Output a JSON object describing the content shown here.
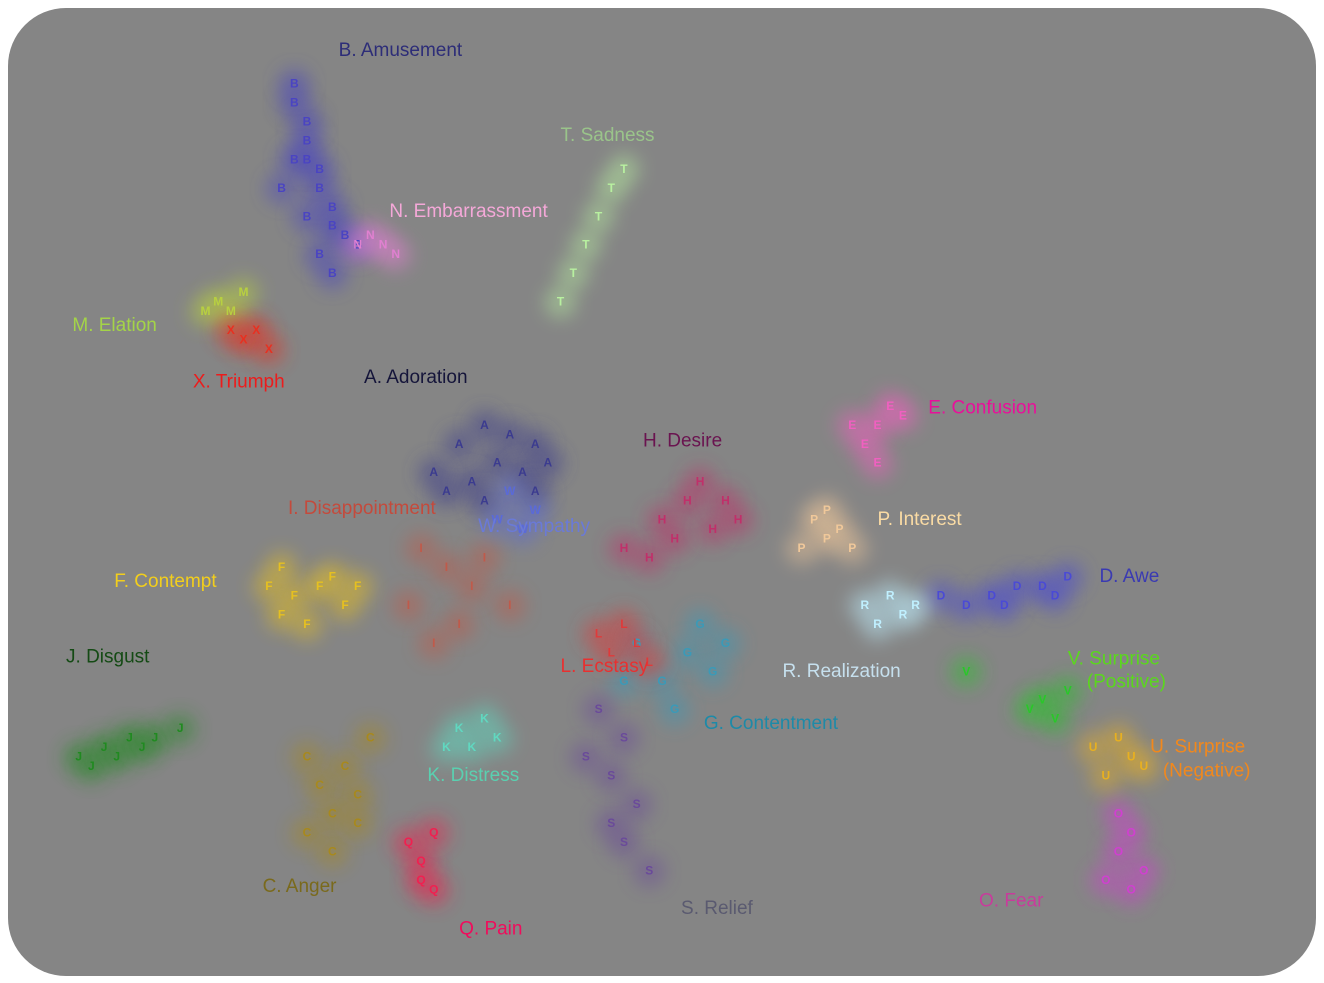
{
  "chart_data": {
    "type": "scatter",
    "title": "",
    "xlabel": "",
    "ylabel": "",
    "grid": false,
    "legend": "none",
    "xlim": [
      0,
      1
    ],
    "ylim": [
      0,
      1
    ],
    "series": [
      {
        "key": "A",
        "label": "A. Adoration",
        "color": "#15153a",
        "point_color": "#3b3b8f",
        "points": [
          [
            0.36,
            0.57
          ],
          [
            0.38,
            0.56
          ],
          [
            0.4,
            0.55
          ],
          [
            0.34,
            0.55
          ],
          [
            0.37,
            0.53
          ],
          [
            0.39,
            0.52
          ],
          [
            0.33,
            0.5
          ],
          [
            0.35,
            0.51
          ],
          [
            0.41,
            0.53
          ],
          [
            0.36,
            0.49
          ],
          [
            0.32,
            0.52
          ],
          [
            0.4,
            0.5
          ]
        ]
      },
      {
        "key": "B",
        "label": "B. Amusement",
        "color": "#2d2d78",
        "point_color": "#4a44c2",
        "points": [
          [
            0.21,
            0.93
          ],
          [
            0.21,
            0.91
          ],
          [
            0.22,
            0.89
          ],
          [
            0.22,
            0.87
          ],
          [
            0.22,
            0.85
          ],
          [
            0.23,
            0.84
          ],
          [
            0.23,
            0.82
          ],
          [
            0.24,
            0.8
          ],
          [
            0.24,
            0.78
          ],
          [
            0.25,
            0.77
          ],
          [
            0.26,
            0.76
          ],
          [
            0.22,
            0.79
          ],
          [
            0.23,
            0.75
          ],
          [
            0.24,
            0.73
          ],
          [
            0.2,
            0.82
          ],
          [
            0.21,
            0.85
          ]
        ]
      },
      {
        "key": "C",
        "label": "C. Anger",
        "color": "#7a6a1c",
        "point_color": "#a8891c",
        "points": [
          [
            0.22,
            0.14
          ],
          [
            0.24,
            0.16
          ],
          [
            0.23,
            0.19
          ],
          [
            0.25,
            0.21
          ],
          [
            0.26,
            0.18
          ],
          [
            0.22,
            0.22
          ],
          [
            0.27,
            0.24
          ],
          [
            0.24,
            0.12
          ],
          [
            0.26,
            0.15
          ]
        ]
      },
      {
        "key": "D",
        "label": "D. Awe",
        "color": "#3a3ab2",
        "point_color": "#4a4ad6",
        "points": [
          [
            0.8,
            0.4
          ],
          [
            0.82,
            0.41
          ],
          [
            0.78,
            0.4
          ],
          [
            0.76,
            0.39
          ],
          [
            0.74,
            0.38
          ],
          [
            0.81,
            0.39
          ],
          [
            0.77,
            0.38
          ],
          [
            0.72,
            0.39
          ]
        ]
      },
      {
        "key": "E",
        "label": "E. Confusion",
        "color": "#e8109a",
        "point_color": "#f060c0",
        "points": [
          [
            0.68,
            0.59
          ],
          [
            0.67,
            0.57
          ],
          [
            0.66,
            0.55
          ],
          [
            0.67,
            0.53
          ],
          [
            0.69,
            0.58
          ],
          [
            0.65,
            0.57
          ]
        ]
      },
      {
        "key": "F",
        "label": "F. Contempt",
        "color": "#f2ce1c",
        "point_color": "#e6c020",
        "points": [
          [
            0.19,
            0.4
          ],
          [
            0.21,
            0.39
          ],
          [
            0.2,
            0.37
          ],
          [
            0.23,
            0.4
          ],
          [
            0.25,
            0.38
          ],
          [
            0.22,
            0.36
          ],
          [
            0.24,
            0.41
          ],
          [
            0.26,
            0.4
          ],
          [
            0.2,
            0.42
          ]
        ]
      },
      {
        "key": "G",
        "label": "G. Contentment",
        "color": "#1d8aa8",
        "point_color": "#3a9ab8",
        "points": [
          [
            0.52,
            0.33
          ],
          [
            0.54,
            0.31
          ],
          [
            0.5,
            0.3
          ],
          [
            0.48,
            0.34
          ],
          [
            0.51,
            0.27
          ],
          [
            0.47,
            0.3
          ],
          [
            0.55,
            0.34
          ],
          [
            0.53,
            0.36
          ]
        ]
      },
      {
        "key": "H",
        "label": "H. Desire",
        "color": "#6a1450",
        "point_color": "#c0306a",
        "points": [
          [
            0.53,
            0.51
          ],
          [
            0.52,
            0.49
          ],
          [
            0.5,
            0.47
          ],
          [
            0.51,
            0.45
          ],
          [
            0.49,
            0.43
          ],
          [
            0.54,
            0.46
          ],
          [
            0.47,
            0.44
          ],
          [
            0.55,
            0.49
          ],
          [
            0.56,
            0.47
          ]
        ]
      },
      {
        "key": "I",
        "label": "I. Disappointment",
        "color": "#c44a3c",
        "point_color": "#c05a4a",
        "points": [
          [
            0.31,
            0.44
          ],
          [
            0.33,
            0.42
          ],
          [
            0.35,
            0.4
          ],
          [
            0.3,
            0.38
          ],
          [
            0.34,
            0.36
          ],
          [
            0.36,
            0.43
          ],
          [
            0.32,
            0.34
          ],
          [
            0.38,
            0.38
          ]
        ]
      },
      {
        "key": "J",
        "label": "J. Disgust",
        "color": "#144a14",
        "point_color": "#208a20",
        "points": [
          [
            0.04,
            0.22
          ],
          [
            0.06,
            0.23
          ],
          [
            0.08,
            0.24
          ],
          [
            0.1,
            0.24
          ],
          [
            0.12,
            0.25
          ],
          [
            0.05,
            0.21
          ],
          [
            0.07,
            0.22
          ],
          [
            0.09,
            0.23
          ]
        ]
      },
      {
        "key": "K",
        "label": "K. Distress",
        "color": "#5ad0b0",
        "point_color": "#60d8c0",
        "points": [
          [
            0.34,
            0.25
          ],
          [
            0.35,
            0.23
          ],
          [
            0.37,
            0.24
          ],
          [
            0.33,
            0.23
          ],
          [
            0.36,
            0.26
          ]
        ]
      },
      {
        "key": "L",
        "label": "L. Ecstasy",
        "color": "#e83030",
        "point_color": "#e03a3a",
        "points": [
          [
            0.47,
            0.36
          ],
          [
            0.48,
            0.34
          ],
          [
            0.46,
            0.33
          ],
          [
            0.49,
            0.32
          ],
          [
            0.45,
            0.35
          ]
        ]
      },
      {
        "key": "M",
        "label": "M. Elation",
        "color": "#a4d448",
        "point_color": "#b8d040",
        "points": [
          [
            0.15,
            0.7
          ],
          [
            0.16,
            0.69
          ],
          [
            0.14,
            0.69
          ],
          [
            0.17,
            0.71
          ]
        ]
      },
      {
        "key": "N",
        "label": "N. Embarrassment",
        "color": "#f4a8d8",
        "point_color": "#e080d0",
        "points": [
          [
            0.27,
            0.77
          ],
          [
            0.28,
            0.76
          ],
          [
            0.29,
            0.75
          ],
          [
            0.26,
            0.76
          ]
        ]
      },
      {
        "key": "O",
        "label": "O. Fear",
        "color": "#c83c9c",
        "point_color": "#d040d0",
        "points": [
          [
            0.87,
            0.08
          ],
          [
            0.88,
            0.1
          ],
          [
            0.86,
            0.12
          ],
          [
            0.87,
            0.14
          ],
          [
            0.85,
            0.09
          ],
          [
            0.86,
            0.16
          ]
        ]
      },
      {
        "key": "P",
        "label": "P. Interest",
        "color": "#fadba4",
        "point_color": "#f0c89a",
        "points": [
          [
            0.62,
            0.47
          ],
          [
            0.63,
            0.45
          ],
          [
            0.64,
            0.46
          ],
          [
            0.61,
            0.44
          ],
          [
            0.65,
            0.44
          ],
          [
            0.63,
            0.48
          ]
        ]
      },
      {
        "key": "Q",
        "label": "Q. Pain",
        "color": "#f00c5c",
        "point_color": "#f02050",
        "points": [
          [
            0.32,
            0.08
          ],
          [
            0.31,
            0.11
          ],
          [
            0.3,
            0.13
          ],
          [
            0.32,
            0.14
          ],
          [
            0.31,
            0.09
          ]
        ]
      },
      {
        "key": "R",
        "label": "R. Realization",
        "color": "#c6e0ee",
        "point_color": "#c0f0ff",
        "points": [
          [
            0.68,
            0.39
          ],
          [
            0.69,
            0.37
          ],
          [
            0.67,
            0.36
          ],
          [
            0.7,
            0.38
          ],
          [
            0.66,
            0.38
          ]
        ]
      },
      {
        "key": "S",
        "label": "S. Relief",
        "color": "#5a5a70",
        "point_color": "#6a4a9a",
        "points": [
          [
            0.45,
            0.27
          ],
          [
            0.47,
            0.24
          ],
          [
            0.46,
            0.2
          ],
          [
            0.48,
            0.17
          ],
          [
            0.47,
            0.13
          ],
          [
            0.49,
            0.1
          ],
          [
            0.46,
            0.15
          ],
          [
            0.44,
            0.22
          ]
        ]
      },
      {
        "key": "T",
        "label": "T. Sadness",
        "color": "#9ac48a",
        "point_color": "#b8f0a0",
        "points": [
          [
            0.47,
            0.84
          ],
          [
            0.46,
            0.82
          ],
          [
            0.45,
            0.79
          ],
          [
            0.44,
            0.76
          ],
          [
            0.43,
            0.73
          ],
          [
            0.42,
            0.7
          ]
        ]
      },
      {
        "key": "U",
        "label": "U. Surprise (Negative)",
        "color": "#f2881c",
        "point_color": "#e8b020",
        "points": [
          [
            0.86,
            0.24
          ],
          [
            0.87,
            0.22
          ],
          [
            0.85,
            0.2
          ],
          [
            0.88,
            0.21
          ],
          [
            0.84,
            0.23
          ]
        ]
      },
      {
        "key": "V",
        "label": "V. Surprise (Positive)",
        "color": "#5ad81c",
        "point_color": "#28c828",
        "points": [
          [
            0.8,
            0.28
          ],
          [
            0.81,
            0.26
          ],
          [
            0.79,
            0.27
          ],
          [
            0.74,
            0.31
          ],
          [
            0.82,
            0.29
          ]
        ]
      },
      {
        "key": "W",
        "label": "W. Sympathy",
        "color": "#6a7ad8",
        "point_color": "#5a6ad8",
        "points": [
          [
            0.38,
            0.5
          ],
          [
            0.4,
            0.48
          ],
          [
            0.39,
            0.46
          ],
          [
            0.37,
            0.47
          ]
        ]
      },
      {
        "key": "X",
        "label": "X. Triumph",
        "color": "#ec1c1c",
        "point_color": "#e83020",
        "points": [
          [
            0.17,
            0.66
          ],
          [
            0.18,
            0.67
          ],
          [
            0.19,
            0.65
          ],
          [
            0.16,
            0.67
          ]
        ]
      }
    ],
    "labels": [
      {
        "text": "B. Amusement",
        "x": 0.245,
        "y": 0.96
      },
      {
        "text": "T. Sadness",
        "x": 0.42,
        "y": 0.87
      },
      {
        "text": "N. Embarrassment",
        "x": 0.285,
        "y": 0.79
      },
      {
        "text": "M. Elation",
        "x": 0.035,
        "y": 0.67
      },
      {
        "text": "X. Triumph",
        "x": 0.13,
        "y": 0.61
      },
      {
        "text": "A. Adoration",
        "x": 0.265,
        "y": 0.615
      },
      {
        "text": "E. Confusion",
        "x": 0.71,
        "y": 0.583
      },
      {
        "text": "H. Desire",
        "x": 0.485,
        "y": 0.548
      },
      {
        "text": "I. Disappointment",
        "x": 0.205,
        "y": 0.477
      },
      {
        "text": "W. Sympathy",
        "x": 0.355,
        "y": 0.458
      },
      {
        "text": "P. Interest",
        "x": 0.67,
        "y": 0.465
      },
      {
        "text": "F. Contempt",
        "x": 0.068,
        "y": 0.4
      },
      {
        "text": "D. Awe",
        "x": 0.845,
        "y": 0.405
      },
      {
        "text": "J. Disgust",
        "x": 0.03,
        "y": 0.32
      },
      {
        "text": "R. Realization",
        "x": 0.595,
        "y": 0.305
      },
      {
        "text": "V. Surprise",
        "x": 0.82,
        "y": 0.318
      },
      {
        "text": "(Positive)",
        "x": 0.835,
        "y": 0.294
      },
      {
        "text": "L. Ecstasy",
        "x": 0.42,
        "y": 0.31
      },
      {
        "text": "G. Contentment",
        "x": 0.533,
        "y": 0.25
      },
      {
        "text": "U. Surprise",
        "x": 0.885,
        "y": 0.225
      },
      {
        "text": "(Negative)",
        "x": 0.895,
        "y": 0.2
      },
      {
        "text": "K. Distress",
        "x": 0.315,
        "y": 0.195
      },
      {
        "text": "C. Anger",
        "x": 0.185,
        "y": 0.078
      },
      {
        "text": "O. Fear",
        "x": 0.75,
        "y": 0.063
      },
      {
        "text": "S. Relief",
        "x": 0.515,
        "y": 0.055
      },
      {
        "text": "Q. Pain",
        "x": 0.34,
        "y": 0.033
      }
    ]
  }
}
